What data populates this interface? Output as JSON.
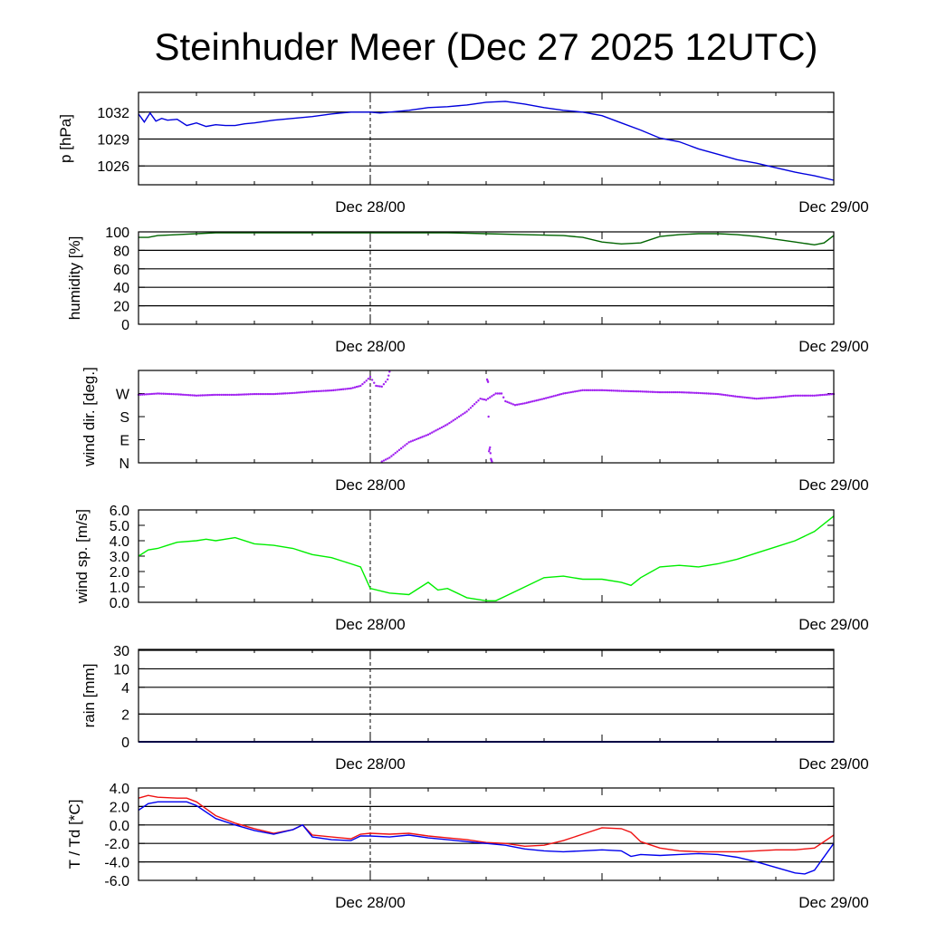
{
  "title": "Steinhuder Meer (Dec 27 2025 12UTC)",
  "colors": {
    "pressure": "#0000dd",
    "humidity": "#006400",
    "wind_dir": "#a020f0",
    "wind_speed": "#00ee00",
    "rain": "#0000aa",
    "temperature": "#ee1111",
    "dewpoint": "#0000ee"
  },
  "chart_data": [
    {
      "type": "line",
      "ylabel": "p [hPa]",
      "x_unit": "hours since Dec 27 12UTC",
      "xlim": [
        0,
        36
      ],
      "x_ticks": [
        {
          "x": 12,
          "label": "Dec 28/00"
        },
        {
          "x": 36,
          "label": "Dec 29/00"
        }
      ],
      "ylim": [
        1023.9,
        1034.2
      ],
      "y_ticks": [
        {
          "v": 1026,
          "label": "1026"
        },
        {
          "v": 1029,
          "label": "1029"
        },
        {
          "v": 1032,
          "label": "1032"
        }
      ],
      "grid": true,
      "series": [
        {
          "color_key": "pressure",
          "x": [
            0,
            0.3,
            0.6,
            0.9,
            1.2,
            1.5,
            2,
            2.5,
            3,
            3.5,
            4,
            4.5,
            5,
            5.5,
            6,
            7,
            8,
            9,
            10,
            11,
            12,
            12.5,
            13,
            14,
            15,
            16,
            17,
            18,
            19,
            20,
            21,
            22,
            23,
            24,
            25,
            26,
            27,
            28,
            29,
            30,
            31,
            32,
            33,
            34,
            35,
            36
          ],
          "y": [
            1031.8,
            1030.9,
            1031.9,
            1031.0,
            1031.3,
            1031.1,
            1031.2,
            1030.5,
            1030.8,
            1030.4,
            1030.6,
            1030.5,
            1030.5,
            1030.7,
            1030.8,
            1031.1,
            1031.3,
            1031.5,
            1031.8,
            1032.0,
            1032.0,
            1031.9,
            1032.0,
            1032.2,
            1032.5,
            1032.6,
            1032.8,
            1033.1,
            1033.2,
            1032.9,
            1032.5,
            1032.2,
            1032.0,
            1031.6,
            1030.8,
            1030.0,
            1029.1,
            1028.7,
            1027.9,
            1027.3,
            1026.7,
            1026.3,
            1025.8,
            1025.3,
            1024.9,
            1024.4
          ]
        }
      ]
    },
    {
      "type": "line",
      "ylabel": "humidity [%]",
      "x_unit": "hours since Dec 27 12UTC",
      "xlim": [
        0,
        36
      ],
      "x_ticks": [
        {
          "x": 12,
          "label": "Dec 28/00"
        },
        {
          "x": 36,
          "label": "Dec 29/00"
        }
      ],
      "ylim": [
        0,
        100
      ],
      "y_ticks": [
        {
          "v": 0,
          "label": "0"
        },
        {
          "v": 20,
          "label": "20"
        },
        {
          "v": 40,
          "label": "40"
        },
        {
          "v": 60,
          "label": "60"
        },
        {
          "v": 80,
          "label": "80"
        },
        {
          "v": 100,
          "label": "100"
        }
      ],
      "grid": true,
      "series": [
        {
          "color_key": "humidity",
          "x": [
            0,
            0.5,
            1,
            2,
            3,
            4,
            6,
            8,
            10,
            12,
            14,
            16,
            18,
            20,
            22,
            23,
            24,
            25,
            26,
            27,
            28,
            29,
            30,
            31,
            32,
            33,
            34,
            35,
            35.5,
            36
          ],
          "y": [
            94,
            94,
            96,
            97,
            98,
            99,
            99,
            99,
            99,
            99,
            99,
            99,
            98,
            97,
            96,
            94,
            89,
            87,
            88,
            95,
            97,
            98,
            98,
            97,
            95,
            92,
            89,
            86,
            88,
            96
          ]
        }
      ]
    },
    {
      "type": "scatter",
      "ylabel": "wind dir. [deg.]",
      "x_unit": "hours since Dec 27 12UTC",
      "xlim": [
        0,
        36
      ],
      "x_ticks": [
        {
          "x": 12,
          "label": "Dec 28/00"
        },
        {
          "x": 36,
          "label": "Dec 29/00"
        }
      ],
      "ylim": [
        0,
        360
      ],
      "y_ticks": [
        {
          "v": 0,
          "label": "N"
        },
        {
          "v": 90,
          "label": "E"
        },
        {
          "v": 180,
          "label": "S"
        },
        {
          "v": 270,
          "label": "W"
        }
      ],
      "grid": false,
      "series": [
        {
          "color_key": "wind_dir",
          "x": [
            0,
            1,
            2,
            3,
            4,
            5,
            6,
            7,
            8,
            9,
            10,
            11,
            11.5,
            11.8,
            12,
            12.3,
            12.6,
            12.9,
            13
          ],
          "y": [
            265,
            270,
            267,
            262,
            265,
            265,
            268,
            268,
            272,
            278,
            282,
            290,
            300,
            320,
            335,
            300,
            297,
            325,
            355
          ]
        },
        {
          "color_key": "wind_dir",
          "x": [
            12.6,
            13,
            14,
            15,
            16,
            17,
            17.7,
            18,
            18.5,
            18.8,
            19,
            19.5,
            20,
            21,
            22,
            23,
            24,
            25,
            26,
            27,
            28,
            29,
            30,
            31,
            32,
            33,
            34,
            35,
            36
          ],
          "y": [
            5,
            20,
            80,
            110,
            150,
            200,
            250,
            245,
            270,
            270,
            240,
            225,
            232,
            250,
            270,
            283,
            283,
            280,
            278,
            275,
            275,
            272,
            268,
            258,
            250,
            255,
            262,
            262,
            268
          ]
        },
        {
          "color_key": "wind_dir",
          "x": [
            18.05,
            18.1,
            18.15,
            18.2,
            18.25,
            18.3
          ],
          "y": [
            325,
            315,
            45,
            60,
            15,
            5
          ]
        }
      ]
    },
    {
      "type": "line",
      "ylabel": "wind sp. [m/s]",
      "x_unit": "hours since Dec 27 12UTC",
      "xlim": [
        0,
        36
      ],
      "x_ticks": [
        {
          "x": 12,
          "label": "Dec 28/00"
        },
        {
          "x": 36,
          "label": "Dec 29/00"
        }
      ],
      "ylim": [
        0,
        6
      ],
      "y_ticks": [
        {
          "v": 0,
          "label": "0.0"
        },
        {
          "v": 1,
          "label": "1.0"
        },
        {
          "v": 2,
          "label": "2.0"
        },
        {
          "v": 3,
          "label": "3.0"
        },
        {
          "v": 4,
          "label": "4.0"
        },
        {
          "v": 5,
          "label": "5.0"
        },
        {
          "v": 6,
          "label": "6.0"
        }
      ],
      "grid": false,
      "series": [
        {
          "color_key": "wind_speed",
          "x": [
            0,
            0.5,
            1,
            1.5,
            2,
            3,
            3.5,
            4,
            5,
            6,
            7,
            8,
            8.5,
            9,
            10,
            11,
            11.5,
            12,
            13,
            14,
            15,
            15.5,
            16,
            17,
            18,
            18.5,
            19,
            20,
            21,
            22,
            23,
            24,
            25,
            25.5,
            26,
            27,
            28,
            29,
            30,
            31,
            32,
            33,
            34,
            35,
            36
          ],
          "y": [
            3.0,
            3.4,
            3.5,
            3.7,
            3.9,
            4.0,
            4.1,
            4.0,
            4.2,
            3.8,
            3.7,
            3.5,
            3.3,
            3.1,
            2.9,
            2.5,
            2.3,
            0.9,
            0.6,
            0.5,
            1.3,
            0.8,
            0.9,
            0.3,
            0.1,
            0.1,
            0.4,
            1.0,
            1.6,
            1.7,
            1.5,
            1.5,
            1.3,
            1.1,
            1.6,
            2.3,
            2.4,
            2.3,
            2.5,
            2.8,
            3.2,
            3.6,
            4.0,
            4.6,
            5.6
          ]
        }
      ]
    },
    {
      "type": "line",
      "ylabel": "rain [mm]",
      "x_unit": "hours since Dec 27 12UTC",
      "xlim": [
        0,
        36
      ],
      "x_ticks": [
        {
          "x": 12,
          "label": "Dec 28/00"
        },
        {
          "x": 36,
          "label": "Dec 29/00"
        }
      ],
      "scale": "nonlinear (ticks 0, 2, 4, 10, 30)",
      "ylim": [
        0,
        30
      ],
      "y_ticks": [
        {
          "v": 0,
          "label": "0"
        },
        {
          "v": 2,
          "label": "2"
        },
        {
          "v": 4,
          "label": "4"
        },
        {
          "v": 10,
          "label": "10"
        },
        {
          "v": 30,
          "label": "30"
        }
      ],
      "grid": true,
      "series": [
        {
          "color_key": "rain",
          "x": [
            0,
            36
          ],
          "y": [
            0,
            0
          ]
        }
      ]
    },
    {
      "type": "line",
      "ylabel": "T / Td [*C]",
      "x_unit": "hours since Dec 27 12UTC",
      "xlim": [
        0,
        36
      ],
      "x_ticks": [
        {
          "x": 12,
          "label": "Dec 28/00"
        },
        {
          "x": 36,
          "label": "Dec 29/00"
        }
      ],
      "ylim": [
        -6,
        4
      ],
      "y_ticks": [
        {
          "v": -6,
          "label": "-6.0"
        },
        {
          "v": -4,
          "label": "-4.0"
        },
        {
          "v": -2,
          "label": "-2.0"
        },
        {
          "v": 0,
          "label": "0.0"
        },
        {
          "v": 2,
          "label": "2.0"
        },
        {
          "v": 4,
          "label": "4.0"
        }
      ],
      "grid": true,
      "series": [
        {
          "color_key": "temperature",
          "x": [
            0,
            0.5,
            1,
            2,
            2.5,
            3,
            4,
            5,
            6,
            7,
            8,
            8.5,
            9,
            10,
            11,
            11.5,
            12,
            13,
            14,
            15,
            16,
            17,
            18,
            19,
            20,
            21,
            22,
            23,
            24,
            25,
            25.5,
            26,
            27,
            28,
            29,
            30,
            31,
            32,
            33,
            34,
            35,
            36
          ],
          "y": [
            2.9,
            3.2,
            3.0,
            2.9,
            2.9,
            2.5,
            1.0,
            0.2,
            -0.4,
            -0.9,
            -0.5,
            0.0,
            -1.1,
            -1.3,
            -1.5,
            -1.0,
            -0.9,
            -1.0,
            -0.9,
            -1.2,
            -1.4,
            -1.6,
            -1.9,
            -2.0,
            -2.3,
            -2.2,
            -1.7,
            -1.0,
            -0.3,
            -0.4,
            -0.8,
            -1.8,
            -2.5,
            -2.8,
            -2.9,
            -2.9,
            -2.9,
            -2.8,
            -2.7,
            -2.7,
            -2.5,
            -1.1
          ]
        },
        {
          "color_key": "dewpoint",
          "x": [
            0,
            0.5,
            1,
            2,
            2.5,
            3,
            4,
            5,
            6,
            7,
            8,
            8.5,
            9,
            10,
            11,
            11.5,
            12,
            13,
            14,
            15,
            16,
            17,
            18,
            19,
            20,
            21,
            22,
            23,
            24,
            25,
            25.5,
            26,
            27,
            28,
            29,
            30,
            31,
            32,
            33,
            34,
            34.5,
            35,
            36
          ],
          "y": [
            1.6,
            2.3,
            2.5,
            2.5,
            2.5,
            2.1,
            0.7,
            0.0,
            -0.6,
            -1.0,
            -0.5,
            0.0,
            -1.3,
            -1.6,
            -1.7,
            -1.2,
            -1.2,
            -1.3,
            -1.1,
            -1.4,
            -1.6,
            -1.8,
            -2.0,
            -2.2,
            -2.6,
            -2.8,
            -2.9,
            -2.8,
            -2.7,
            -2.8,
            -3.4,
            -3.2,
            -3.3,
            -3.2,
            -3.1,
            -3.2,
            -3.5,
            -4.0,
            -4.6,
            -5.2,
            -5.3,
            -4.9,
            -2.0
          ]
        }
      ]
    }
  ]
}
